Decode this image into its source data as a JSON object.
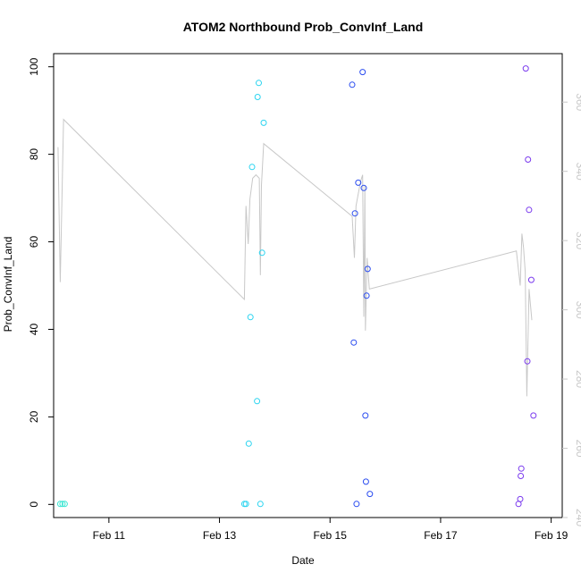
{
  "chart_data": {
    "type": "scatter",
    "title": "ATOM2 Northbound Prob_ConvInf_Land",
    "xlabel": "Date",
    "ylabel": "Prob_ConvInf_Land",
    "x_unit": "days (Feb)",
    "xlim": [
      10.0,
      19.2
    ],
    "ylim": [
      -3,
      103
    ],
    "ylim_right": [
      240,
      374
    ],
    "x_ticks": [
      {
        "value": 11,
        "label": "Feb 11"
      },
      {
        "value": 13,
        "label": "Feb 13"
      },
      {
        "value": 15,
        "label": "Feb 15"
      },
      {
        "value": 17,
        "label": "Feb 17"
      },
      {
        "value": 19,
        "label": "Feb 19"
      }
    ],
    "y_ticks": [
      0,
      20,
      40,
      60,
      80,
      100
    ],
    "y_ticks_right": [
      240,
      260,
      280,
      300,
      320,
      340,
      360
    ],
    "grid": false,
    "points": [
      {
        "x": 10.12,
        "y": 0.1,
        "color": "#3ae6d2"
      },
      {
        "x": 10.16,
        "y": 0.1,
        "color": "#3ae6d2"
      },
      {
        "x": 10.2,
        "y": 0.1,
        "color": "#3ae6d2"
      },
      {
        "x": 13.45,
        "y": 0.1,
        "color": "#2ad4f0"
      },
      {
        "x": 13.48,
        "y": 0.1,
        "color": "#2ad4f0"
      },
      {
        "x": 13.53,
        "y": 13.9,
        "color": "#2ad4f0"
      },
      {
        "x": 13.56,
        "y": 42.8,
        "color": "#2ad4f0"
      },
      {
        "x": 13.59,
        "y": 77.1,
        "color": "#2ad4f0"
      },
      {
        "x": 13.68,
        "y": 23.6,
        "color": "#2ad4f0"
      },
      {
        "x": 13.69,
        "y": 93.1,
        "color": "#2ad4f0"
      },
      {
        "x": 13.71,
        "y": 96.3,
        "color": "#2ad4f0"
      },
      {
        "x": 13.74,
        "y": 0.1,
        "color": "#2ad4f0"
      },
      {
        "x": 13.77,
        "y": 57.5,
        "color": "#2ad4f0"
      },
      {
        "x": 13.8,
        "y": 87.2,
        "color": "#2ad4f0"
      },
      {
        "x": 15.4,
        "y": 95.9,
        "color": "#2a4cf0"
      },
      {
        "x": 15.43,
        "y": 37.0,
        "color": "#2a4cf0"
      },
      {
        "x": 15.45,
        "y": 66.5,
        "color": "#2a4cf0"
      },
      {
        "x": 15.48,
        "y": 0.1,
        "color": "#2a4cf0"
      },
      {
        "x": 15.51,
        "y": 73.5,
        "color": "#2a4cf0"
      },
      {
        "x": 15.59,
        "y": 98.8,
        "color": "#2a4cf0"
      },
      {
        "x": 15.61,
        "y": 72.3,
        "color": "#2a4cf0"
      },
      {
        "x": 15.64,
        "y": 20.3,
        "color": "#2a4cf0"
      },
      {
        "x": 15.65,
        "y": 5.2,
        "color": "#2a4cf0"
      },
      {
        "x": 15.66,
        "y": 47.7,
        "color": "#2a4cf0"
      },
      {
        "x": 15.68,
        "y": 53.8,
        "color": "#2a4cf0"
      },
      {
        "x": 15.72,
        "y": 2.4,
        "color": "#2a4cf0"
      },
      {
        "x": 18.41,
        "y": 0.1,
        "color": "#7a3aee"
      },
      {
        "x": 18.44,
        "y": 1.2,
        "color": "#7a3aee"
      },
      {
        "x": 18.45,
        "y": 6.5,
        "color": "#7a3aee"
      },
      {
        "x": 18.46,
        "y": 8.2,
        "color": "#7a3aee"
      },
      {
        "x": 18.54,
        "y": 99.6,
        "color": "#7a3aee"
      },
      {
        "x": 18.57,
        "y": 32.7,
        "color": "#7a3aee"
      },
      {
        "x": 18.58,
        "y": 78.8,
        "color": "#7a3aee"
      },
      {
        "x": 18.6,
        "y": 67.3,
        "color": "#7a3aee"
      },
      {
        "x": 18.64,
        "y": 51.3,
        "color": "#7a3aee"
      },
      {
        "x": 18.68,
        "y": 20.3,
        "color": "#7a3aee"
      }
    ],
    "line_series": {
      "axis": "right",
      "color": "#c8c8c8",
      "points": [
        [
          10.08,
          347
        ],
        [
          10.12,
          308
        ],
        [
          10.18,
          355
        ],
        [
          13.45,
          303
        ],
        [
          13.48,
          330
        ],
        [
          13.52,
          319
        ],
        [
          13.55,
          332
        ],
        [
          13.6,
          338
        ],
        [
          13.66,
          339
        ],
        [
          13.72,
          338
        ],
        [
          13.74,
          310
        ],
        [
          13.76,
          336
        ],
        [
          13.8,
          348
        ],
        [
          15.4,
          327
        ],
        [
          15.44,
          315
        ],
        [
          15.47,
          330
        ],
        [
          15.55,
          337
        ],
        [
          15.59,
          339
        ],
        [
          15.61,
          298
        ],
        [
          15.63,
          336
        ],
        [
          15.64,
          294
        ],
        [
          15.67,
          315
        ],
        [
          15.71,
          306
        ],
        [
          18.37,
          317
        ],
        [
          18.44,
          307
        ],
        [
          18.47,
          322
        ],
        [
          18.5,
          318
        ],
        [
          18.53,
          311
        ],
        [
          18.56,
          275
        ],
        [
          18.6,
          306
        ],
        [
          18.65,
          297
        ]
      ]
    }
  }
}
